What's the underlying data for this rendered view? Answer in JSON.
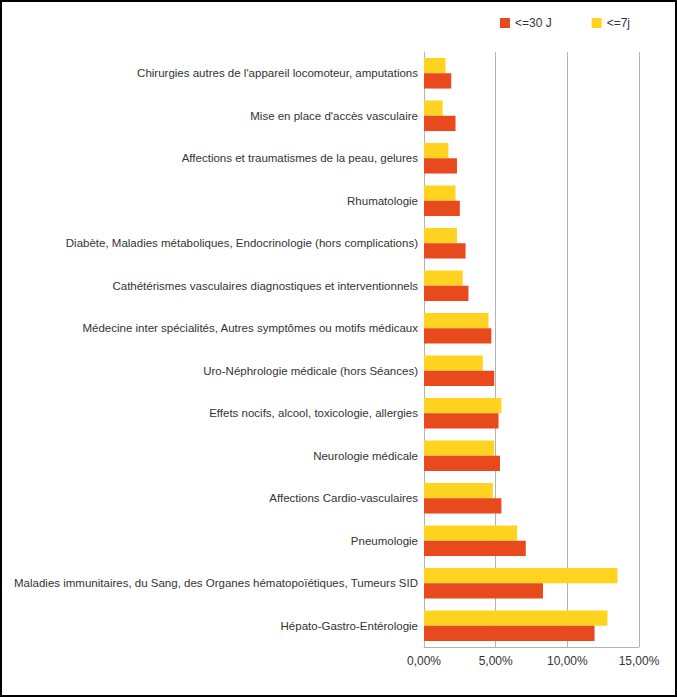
{
  "chart_data": {
    "type": "bar",
    "orientation": "horizontal",
    "categories": [
      "Chirurgies autres de l'appareil locomoteur, amputations",
      "Mise en place d'accès vasculaire",
      "Affections et traumatismes de la peau, gelures",
      "Rhumatologie",
      "Diabète, Maladies métaboliques, Endocrinologie (hors complications)",
      "Cathétérismes vasculaires diagnostiques et interventionnels",
      "Médecine inter spécialités, Autres symptômes ou motifs médicaux",
      "Uro-Néphrologie médicale (hors Séances)",
      "Effets nocifs, alcool, toxicologie, allergies",
      "Neurologie médicale",
      "Affections Cardio-vasculaires",
      "Pneumologie",
      "Maladies immunitaires, du Sang, des Organes hématopoïétiques, Tumeurs SID",
      "Hépato-Gastro-Entérologie"
    ],
    "series": [
      {
        "name": "<=30 J",
        "color": "#e8491d",
        "values": [
          1.9,
          2.2,
          2.3,
          2.5,
          2.9,
          3.1,
          4.7,
          4.9,
          5.2,
          5.3,
          5.4,
          7.1,
          8.3,
          11.9
        ]
      },
      {
        "name": "<=7j",
        "color": "#ffd320",
        "values": [
          1.5,
          1.3,
          1.7,
          2.2,
          2.3,
          2.7,
          4.5,
          4.1,
          5.4,
          4.9,
          4.8,
          6.5,
          13.5,
          12.8
        ]
      }
    ],
    "xlim": [
      0,
      15
    ],
    "xticks": [
      {
        "value": 0,
        "label": "0,00%"
      },
      {
        "value": 5,
        "label": "5,00%"
      },
      {
        "value": 10,
        "label": "10,00%"
      },
      {
        "value": 15,
        "label": "15,00%"
      }
    ],
    "grid": true,
    "legend": "top-right"
  }
}
